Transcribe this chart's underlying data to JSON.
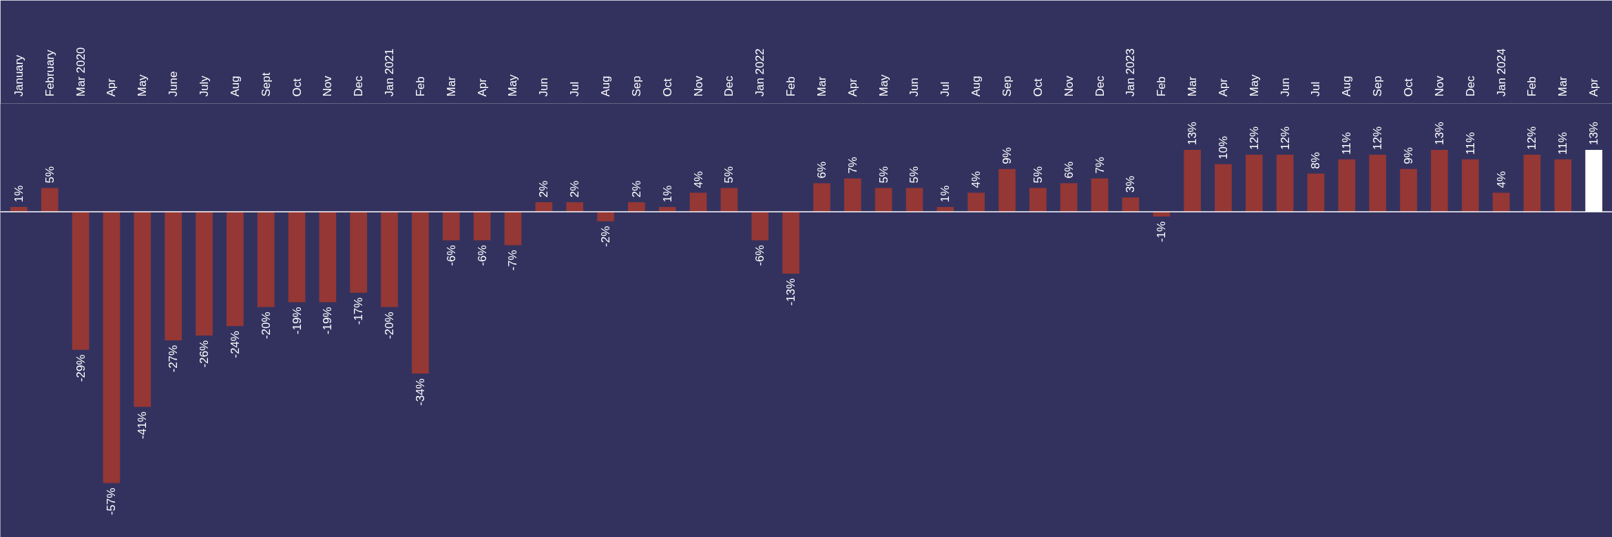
{
  "chart_data": {
    "type": "bar",
    "categories": [
      "January",
      "February",
      "Mar 2020",
      "Apr",
      "May",
      "June",
      "July",
      "Aug",
      "Sept",
      "Oct",
      "Nov",
      "Dec",
      "Jan 2021",
      "Feb",
      "Mar",
      "Apr",
      "May",
      "Jun",
      "Jul",
      "Aug",
      "Sep",
      "Oct",
      "Nov",
      "Dec",
      "Jan 2022",
      "Feb",
      "Mar",
      "Apr",
      "May",
      "Jun",
      "Jul",
      "Aug",
      "Sep",
      "Oct",
      "Nov",
      "Dec",
      "Jan 2023",
      "Feb",
      "Mar",
      "Apr",
      "May",
      "Jun",
      "Jul",
      "Aug",
      "Sep",
      "Oct",
      "Nov",
      "Dec",
      "Jan 2024",
      "Feb",
      "Mar",
      "Apr"
    ],
    "values": [
      1,
      5,
      -29,
      -57,
      -41,
      -27,
      -26,
      -24,
      -20,
      -19,
      -19,
      -17,
      -20,
      -34,
      -6,
      -6,
      -7,
      2,
      2,
      -2,
      2,
      1,
      4,
      5,
      -6,
      -13,
      6,
      7,
      5,
      5,
      1,
      4,
      9,
      5,
      6,
      7,
      3,
      -1,
      13,
      10,
      12,
      12,
      8,
      11,
      12,
      9,
      13,
      11,
      4,
      12,
      11,
      13
    ],
    "value_labels": [
      "1%",
      "5%",
      "-29%",
      "-57%",
      "-41%",
      "-27%",
      "-26%",
      "-24%",
      "-20%",
      "-19%",
      "-19%",
      "-17%",
      "-20%",
      "-34%",
      "-6%",
      "-6%",
      "-7%",
      "2%",
      "2%",
      "-2%",
      "2%",
      "1%",
      "4%",
      "5%",
      "-6%",
      "-13%",
      "6%",
      "7%",
      "5%",
      "5%",
      "1%",
      "4%",
      "9%",
      "5%",
      "6%",
      "7%",
      "3%",
      "-1%",
      "13%",
      "10%",
      "12%",
      "12%",
      "8%",
      "11%",
      "12%",
      "9%",
      "13%",
      "11%",
      "4%",
      "12%",
      "11%",
      "13%"
    ],
    "colors": [
      "#953735",
      "#953735",
      "#953735",
      "#953735",
      "#953735",
      "#953735",
      "#953735",
      "#953735",
      "#953735",
      "#953735",
      "#953735",
      "#953735",
      "#953735",
      "#953735",
      "#953735",
      "#953735",
      "#953735",
      "#953735",
      "#953735",
      "#953735",
      "#953735",
      "#953735",
      "#953735",
      "#953735",
      "#953735",
      "#953735",
      "#953735",
      "#953735",
      "#953735",
      "#953735",
      "#953735",
      "#953735",
      "#953735",
      "#953735",
      "#953735",
      "#953735",
      "#953735",
      "#953735",
      "#953735",
      "#953735",
      "#953735",
      "#953735",
      "#953735",
      "#953735",
      "#953735",
      "#953735",
      "#953735",
      "#953735",
      "#953735",
      "#953735",
      "#953735",
      "#ffffff"
    ],
    "grid": false
  }
}
